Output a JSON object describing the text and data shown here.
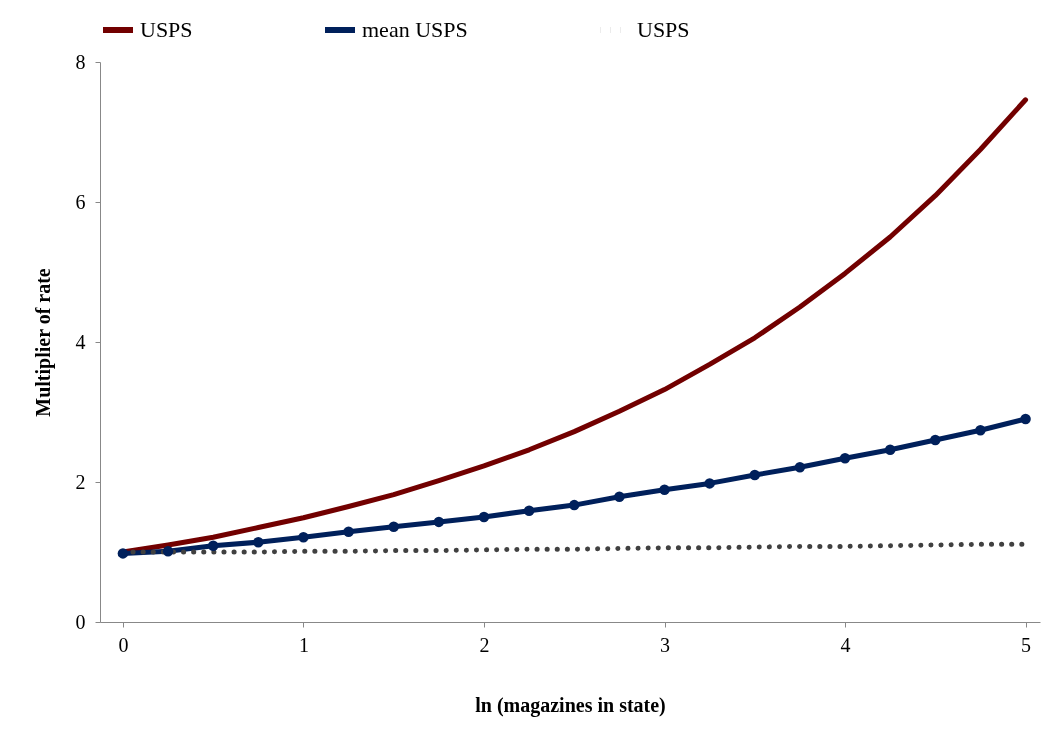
{
  "chart_data": {
    "type": "line",
    "xlabel": "ln (magazines in state)",
    "ylabel": "Multiplier of rate",
    "x": [
      0,
      0.25,
      0.5,
      0.75,
      1,
      1.25,
      1.5,
      1.75,
      2,
      2.25,
      2.5,
      2.75,
      3,
      3.25,
      3.5,
      3.75,
      4,
      4.25,
      4.5,
      4.75,
      5
    ],
    "series": [
      {
        "name": "USPS",
        "color": "#720000",
        "marker": "none",
        "line_style": "solid",
        "values": [
          1.0,
          1.1,
          1.21,
          1.35,
          1.49,
          1.65,
          1.82,
          2.02,
          2.23,
          2.46,
          2.72,
          3.01,
          3.32,
          3.68,
          4.06,
          4.5,
          4.98,
          5.5,
          6.09,
          6.75,
          7.46
        ]
      },
      {
        "name": "mean USPS",
        "color": "#00205b",
        "marker": "circle",
        "line_style": "solid",
        "values": [
          0.98,
          1.01,
          1.09,
          1.14,
          1.21,
          1.29,
          1.36,
          1.43,
          1.5,
          1.59,
          1.67,
          1.79,
          1.89,
          1.98,
          2.1,
          2.21,
          2.34,
          2.46,
          2.6,
          2.74,
          2.9
        ]
      },
      {
        "name": "USPS",
        "color": "#404040",
        "marker": "none",
        "line_style": "dotted",
        "values": [
          1.0,
          1.0,
          1.0,
          1.0,
          1.01,
          1.01,
          1.02,
          1.02,
          1.03,
          1.04,
          1.04,
          1.05,
          1.06,
          1.06,
          1.07,
          1.08,
          1.08,
          1.09,
          1.1,
          1.11,
          1.11
        ]
      }
    ],
    "xlim": [
      -0.127,
      5.08
    ],
    "xticks": [
      0,
      1,
      2,
      3,
      4,
      5
    ],
    "ylim": [
      0,
      8
    ],
    "yticks": [
      0,
      2,
      4,
      6,
      8
    ],
    "grid": false,
    "legend": "top"
  }
}
